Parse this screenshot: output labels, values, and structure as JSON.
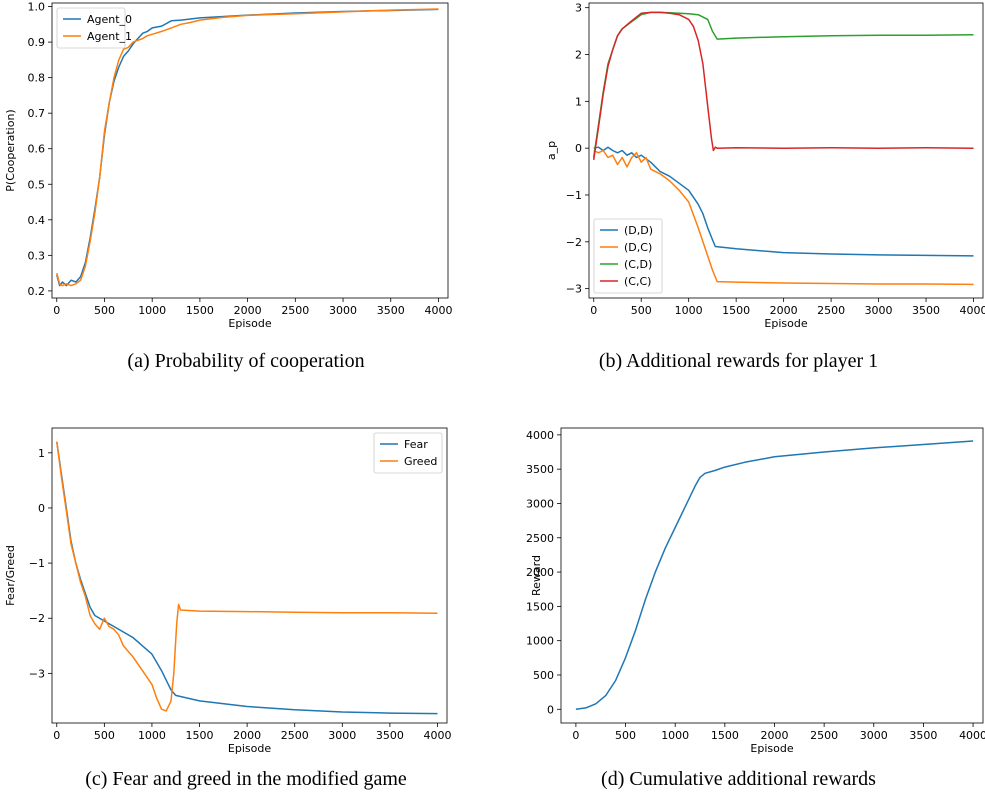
{
  "captions": {
    "a": "(a) Probability of cooperation",
    "b": "(b) Additional rewards for player 1",
    "c": "(c) Fear and greed in the modified game",
    "d": "(d) Cumulative additional rewards"
  },
  "chart_data": [
    {
      "id": "a",
      "type": "line",
      "xlabel": "Episode",
      "ylabel": "P(Cooperation)",
      "xlim": [
        -50,
        4100
      ],
      "ylim": [
        0.18,
        1.01
      ],
      "xticks": [
        0,
        500,
        1000,
        1500,
        2000,
        2500,
        3000,
        3500,
        4000
      ],
      "yticks": [
        0.2,
        0.3,
        0.4,
        0.5,
        0.6,
        0.7,
        0.8,
        0.9,
        1.0
      ],
      "ytick_labels": [
        "0.2",
        "0.3",
        "0.4",
        "0.5",
        "0.6",
        "0.7",
        "0.8",
        "0.9",
        "1.0"
      ],
      "legend_position": "upper-left",
      "series": [
        {
          "name": "Agent_0",
          "color": "#1f77b4",
          "x": [
            0,
            30,
            60,
            100,
            150,
            200,
            250,
            300,
            350,
            400,
            450,
            500,
            550,
            600,
            650,
            700,
            750,
            800,
            850,
            900,
            950,
            1000,
            1100,
            1200,
            1300,
            1400,
            1500,
            1750,
            2000,
            2500,
            3000,
            3500,
            4000
          ],
          "y": [
            0.245,
            0.215,
            0.225,
            0.215,
            0.23,
            0.225,
            0.24,
            0.28,
            0.35,
            0.43,
            0.52,
            0.64,
            0.73,
            0.79,
            0.83,
            0.86,
            0.875,
            0.895,
            0.91,
            0.925,
            0.93,
            0.94,
            0.945,
            0.96,
            0.962,
            0.965,
            0.968,
            0.972,
            0.976,
            0.982,
            0.986,
            0.989,
            0.992
          ]
        },
        {
          "name": "Agent_1",
          "color": "#ff7f0e",
          "x": [
            0,
            30,
            60,
            100,
            150,
            200,
            250,
            300,
            350,
            400,
            450,
            500,
            550,
            600,
            650,
            700,
            750,
            800,
            850,
            900,
            950,
            1000,
            1100,
            1200,
            1300,
            1400,
            1500,
            1750,
            2000,
            2500,
            3000,
            3500,
            4000
          ],
          "y": [
            0.25,
            0.22,
            0.215,
            0.22,
            0.215,
            0.22,
            0.23,
            0.27,
            0.34,
            0.42,
            0.52,
            0.65,
            0.73,
            0.8,
            0.85,
            0.88,
            0.885,
            0.9,
            0.905,
            0.91,
            0.918,
            0.922,
            0.93,
            0.94,
            0.95,
            0.955,
            0.962,
            0.97,
            0.975,
            0.98,
            0.985,
            0.99,
            0.993
          ]
        }
      ]
    },
    {
      "id": "b",
      "type": "line",
      "xlabel": "Episode",
      "ylabel": "a_p",
      "xlim": [
        -50,
        4100
      ],
      "ylim": [
        -3.2,
        3.1
      ],
      "xticks": [
        0,
        500,
        1000,
        1500,
        2000,
        2500,
        3000,
        3500,
        4000
      ],
      "yticks": [
        -3,
        -2,
        -1,
        0,
        1,
        2,
        3
      ],
      "ytick_labels": [
        "−3",
        "−2",
        "−1",
        "0",
        "1",
        "2",
        "3"
      ],
      "legend_position": "lower-left",
      "series": [
        {
          "name": "(D,D)",
          "color": "#1f77b4",
          "x": [
            0,
            50,
            100,
            150,
            200,
            250,
            300,
            350,
            400,
            450,
            500,
            600,
            700,
            800,
            900,
            1000,
            1100,
            1150,
            1200,
            1250,
            1280,
            1500,
            2000,
            2500,
            3000,
            3500,
            4000
          ],
          "y": [
            0.0,
            0.02,
            -0.05,
            0.02,
            -0.05,
            -0.1,
            -0.05,
            -0.15,
            -0.1,
            -0.2,
            -0.15,
            -0.3,
            -0.5,
            -0.6,
            -0.75,
            -0.9,
            -1.2,
            -1.4,
            -1.7,
            -1.95,
            -2.1,
            -2.15,
            -2.23,
            -2.26,
            -2.28,
            -2.29,
            -2.3
          ]
        },
        {
          "name": "(D,C)",
          "color": "#ff7f0e",
          "x": [
            0,
            50,
            100,
            150,
            200,
            250,
            300,
            350,
            400,
            450,
            500,
            550,
            600,
            700,
            800,
            900,
            1000,
            1100,
            1200,
            1250,
            1300,
            1500,
            2000,
            2500,
            3000,
            3500,
            4000
          ],
          "y": [
            -0.05,
            -0.1,
            -0.05,
            -0.2,
            -0.15,
            -0.35,
            -0.2,
            -0.4,
            -0.2,
            -0.1,
            -0.3,
            -0.2,
            -0.45,
            -0.55,
            -0.7,
            -0.9,
            -1.15,
            -1.7,
            -2.3,
            -2.6,
            -2.85,
            -2.86,
            -2.88,
            -2.89,
            -2.9,
            -2.9,
            -2.91
          ]
        },
        {
          "name": "(C,D)",
          "color": "#2ca02c",
          "x": [
            0,
            50,
            100,
            150,
            200,
            250,
            300,
            400,
            500,
            600,
            700,
            800,
            900,
            1000,
            1100,
            1200,
            1250,
            1300,
            1500,
            2000,
            2500,
            3000,
            3500,
            4000
          ],
          "y": [
            -0.2,
            0.5,
            1.2,
            1.8,
            2.1,
            2.4,
            2.55,
            2.7,
            2.85,
            2.9,
            2.9,
            2.89,
            2.88,
            2.87,
            2.85,
            2.75,
            2.5,
            2.33,
            2.35,
            2.38,
            2.4,
            2.41,
            2.41,
            2.42
          ]
        },
        {
          "name": "(C,C)",
          "color": "#d62728",
          "x": [
            0,
            50,
            100,
            150,
            200,
            250,
            300,
            400,
            500,
            600,
            700,
            800,
            900,
            1000,
            1050,
            1100,
            1150,
            1200,
            1240,
            1260,
            1280,
            1300,
            1500,
            2000,
            2500,
            3000,
            3500,
            4000
          ],
          "y": [
            -0.25,
            0.45,
            1.15,
            1.75,
            2.1,
            2.4,
            2.55,
            2.72,
            2.88,
            2.9,
            2.9,
            2.88,
            2.85,
            2.75,
            2.6,
            2.3,
            1.8,
            0.9,
            0.2,
            -0.05,
            0.02,
            0.0,
            0.01,
            0.0,
            0.01,
            0.0,
            0.01,
            0.0
          ]
        }
      ]
    },
    {
      "id": "c",
      "type": "line",
      "xlabel": "Episode",
      "ylabel": "Fear/Greed",
      "xlim": [
        -50,
        4100
      ],
      "ylim": [
        -3.9,
        1.45
      ],
      "xticks": [
        0,
        500,
        1000,
        1500,
        2000,
        2500,
        3000,
        3500,
        4000
      ],
      "yticks": [
        -3,
        -2,
        -1,
        0,
        1
      ],
      "ytick_labels": [
        "−3",
        "−2",
        "−1",
        "0",
        "1"
      ],
      "legend_position": "upper-right",
      "series": [
        {
          "name": "Fear",
          "color": "#1f77b4",
          "x": [
            0,
            50,
            100,
            150,
            200,
            250,
            300,
            350,
            400,
            500,
            600,
            700,
            800,
            900,
            1000,
            1100,
            1200,
            1250,
            1300,
            1500,
            2000,
            2500,
            3000,
            3500,
            4000
          ],
          "y": [
            1.2,
            0.6,
            0.0,
            -0.6,
            -1.0,
            -1.3,
            -1.55,
            -1.8,
            -1.95,
            -2.05,
            -2.15,
            -2.25,
            -2.35,
            -2.5,
            -2.65,
            -2.95,
            -3.3,
            -3.4,
            -3.42,
            -3.5,
            -3.6,
            -3.66,
            -3.7,
            -3.72,
            -3.73
          ]
        },
        {
          "name": "Greed",
          "color": "#ff7f0e",
          "x": [
            0,
            50,
            100,
            150,
            200,
            250,
            300,
            350,
            400,
            450,
            500,
            550,
            600,
            650,
            700,
            800,
            900,
            1000,
            1050,
            1100,
            1150,
            1200,
            1230,
            1260,
            1280,
            1300,
            1500,
            2000,
            2500,
            3000,
            3500,
            4000
          ],
          "y": [
            1.2,
            0.55,
            -0.05,
            -0.65,
            -1.0,
            -1.35,
            -1.6,
            -1.95,
            -2.1,
            -2.2,
            -2.0,
            -2.15,
            -2.2,
            -2.3,
            -2.5,
            -2.7,
            -2.95,
            -3.2,
            -3.45,
            -3.65,
            -3.68,
            -3.5,
            -3.0,
            -2.1,
            -1.75,
            -1.85,
            -1.87,
            -1.88,
            -1.89,
            -1.9,
            -1.9,
            -1.91
          ]
        }
      ]
    },
    {
      "id": "d",
      "type": "line",
      "xlabel": "Episode",
      "ylabel": "Reward",
      "xlim": [
        -150,
        4100
      ],
      "ylim": [
        -200,
        4100
      ],
      "xticks": [
        0,
        500,
        1000,
        1500,
        2000,
        2500,
        3000,
        3500,
        4000
      ],
      "yticks": [
        0,
        500,
        1000,
        1500,
        2000,
        2500,
        3000,
        3500,
        4000
      ],
      "ytick_labels": [
        "0",
        "500",
        "1000",
        "1500",
        "2000",
        "2500",
        "3000",
        "3500",
        "4000"
      ],
      "series": [
        {
          "color": "#1f77b4",
          "x": [
            0,
            100,
            200,
            300,
            400,
            500,
            600,
            700,
            800,
            900,
            1000,
            1100,
            1200,
            1250,
            1300,
            1400,
            1500,
            1700,
            2000,
            2500,
            3000,
            3500,
            4000
          ],
          "y": [
            0,
            20,
            80,
            200,
            420,
            750,
            1150,
            1600,
            2000,
            2350,
            2650,
            2950,
            3250,
            3380,
            3440,
            3480,
            3530,
            3600,
            3680,
            3750,
            3810,
            3860,
            3910
          ]
        }
      ]
    }
  ]
}
